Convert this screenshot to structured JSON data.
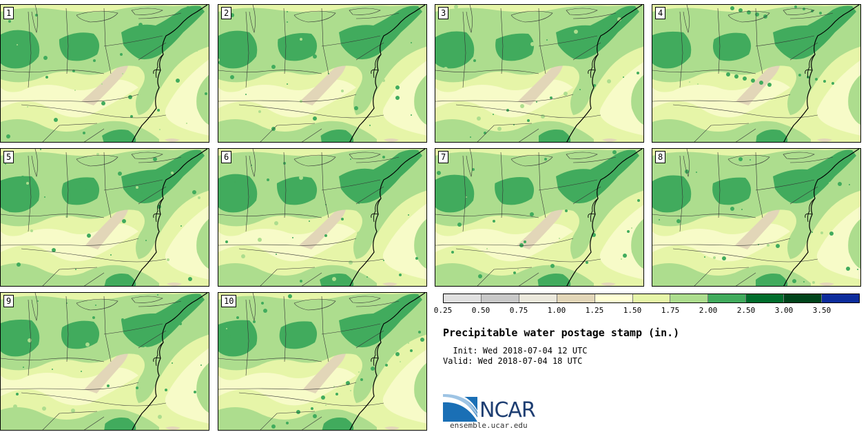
{
  "panels": [
    {
      "label": "1"
    },
    {
      "label": "2"
    },
    {
      "label": "3"
    },
    {
      "label": "4"
    },
    {
      "label": "5"
    },
    {
      "label": "6"
    },
    {
      "label": "7"
    },
    {
      "label": "8"
    },
    {
      "label": "9"
    },
    {
      "label": "10"
    }
  ],
  "colorbar": {
    "colors": [
      "#e0e0e0",
      "#c8c8c8",
      "#ebe8dc",
      "#e2d6b8",
      "#ffffd4",
      "#e6f5a8",
      "#addd8e",
      "#41ab5d",
      "#006d2c",
      "#00441b",
      "#0c2c9c"
    ],
    "ticks": [
      "0.25",
      "0.50",
      "0.75",
      "1.00",
      "1.25",
      "1.50",
      "1.75",
      "2.00",
      "2.50",
      "3.00",
      "3.50"
    ]
  },
  "title": "Precipitable water postage stamp (in.)",
  "init": "  Init: Wed 2018-07-04 12 UTC",
  "valid": "Valid: Wed 2018-07-04 18 UTC",
  "logo": {
    "name": "NCAR",
    "url": "ensemble.ucar.edu"
  }
}
